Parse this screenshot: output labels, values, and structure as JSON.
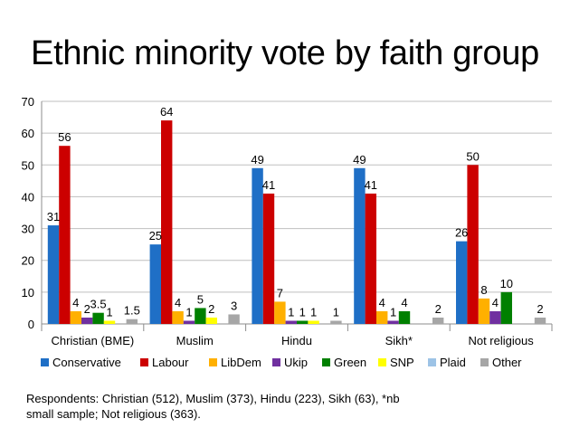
{
  "chart_data": {
    "type": "bar",
    "title": "Ethnic minority vote by faith group",
    "categories": [
      "Christian (BME)",
      "Muslim",
      "Hindu",
      "Sikh*",
      "Not religious"
    ],
    "ylim": [
      0,
      70
    ],
    "yticks": [
      0,
      10,
      20,
      30,
      40,
      50,
      60,
      70
    ],
    "grid": true,
    "legend_position": "bottom",
    "series": [
      {
        "name": "Conservative",
        "color": "#1f6fc6",
        "values": [
          31,
          25,
          49,
          49,
          26
        ],
        "labels": [
          "31",
          "25",
          "49",
          "49",
          "26"
        ]
      },
      {
        "name": "Labour",
        "color": "#cc0000",
        "values": [
          56,
          64,
          41,
          41,
          50
        ],
        "labels": [
          "56",
          "64",
          "41",
          "41",
          "50"
        ]
      },
      {
        "name": "LibDem",
        "color": "#ffb000",
        "values": [
          4,
          4,
          7,
          4,
          8
        ],
        "labels": [
          "4",
          "4",
          "7",
          "4",
          "8"
        ]
      },
      {
        "name": "Ukip",
        "color": "#7030a0",
        "values": [
          2,
          1,
          1,
          1,
          4
        ],
        "labels": [
          "2",
          "1",
          "1",
          "1",
          "4"
        ]
      },
      {
        "name": "Green",
        "color": "#008000",
        "values": [
          3.5,
          5,
          1,
          4,
          10
        ],
        "labels": [
          "3.5",
          "5",
          "1",
          "4",
          "10"
        ]
      },
      {
        "name": "SNP",
        "color": "#ffff00",
        "values": [
          1,
          2,
          1,
          null,
          null
        ],
        "labels": [
          "1",
          "2",
          "1",
          "",
          ""
        ]
      },
      {
        "name": "Plaid",
        "color": "#9dc3e6",
        "values": [
          null,
          null,
          null,
          null,
          null
        ],
        "labels": [
          "",
          "",
          "",
          "",
          ""
        ]
      },
      {
        "name": "Other",
        "color": "#a6a6a6",
        "values": [
          1.5,
          3,
          1,
          2,
          2
        ],
        "labels": [
          "1.5",
          "3",
          "1",
          "2",
          "2"
        ]
      }
    ]
  },
  "footnote": {
    "line1": "Respondents: Christian (512), Muslim (373), Hindu (223), Sikh (63), *nb",
    "line2": "small sample; Not religious (363)."
  }
}
